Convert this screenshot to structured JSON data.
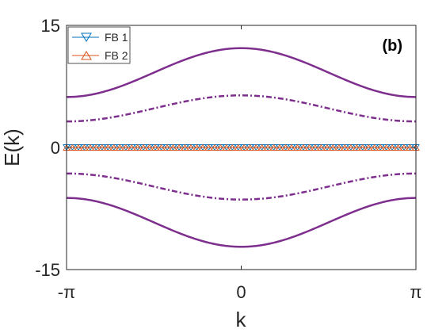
{
  "chart_data": {
    "type": "line",
    "panel_label": "(b)",
    "xlabel": "k",
    "ylabel": "E(k)",
    "xlim": [
      -3.14159,
      3.14159
    ],
    "ylim": [
      -15,
      15
    ],
    "x_ticks": [
      {
        "value": -3.14159,
        "label": "-π"
      },
      {
        "value": 0,
        "label": "0"
      },
      {
        "value": 3.14159,
        "label": "π"
      }
    ],
    "y_ticks": [
      {
        "value": -15,
        "label": "-15"
      },
      {
        "value": 0,
        "label": "0"
      },
      {
        "value": 15,
        "label": "15"
      }
    ],
    "legend_position": "top-left",
    "grid": false,
    "bands": [
      {
        "style": "solid",
        "color": "#7e2f8e",
        "value_at_zero": 12.2,
        "value_at_pi": 6.2
      },
      {
        "style": "dashdot",
        "color": "#7e2f8e",
        "value_at_zero": 6.4,
        "value_at_pi": 3.2
      },
      {
        "style": "dashdot",
        "color": "#7e2f8e",
        "value_at_zero": -6.4,
        "value_at_pi": -3.2
      },
      {
        "style": "solid",
        "color": "#7e2f8e",
        "value_at_zero": -12.2,
        "value_at_pi": -6.2
      }
    ],
    "series": [
      {
        "name": "FB 1",
        "marker": "triangle-down",
        "color": "#0072bd",
        "value": 0,
        "points": 60
      },
      {
        "name": "FB 2",
        "marker": "triangle-up",
        "color": "#d95319",
        "value": 0,
        "points": 60
      }
    ]
  }
}
